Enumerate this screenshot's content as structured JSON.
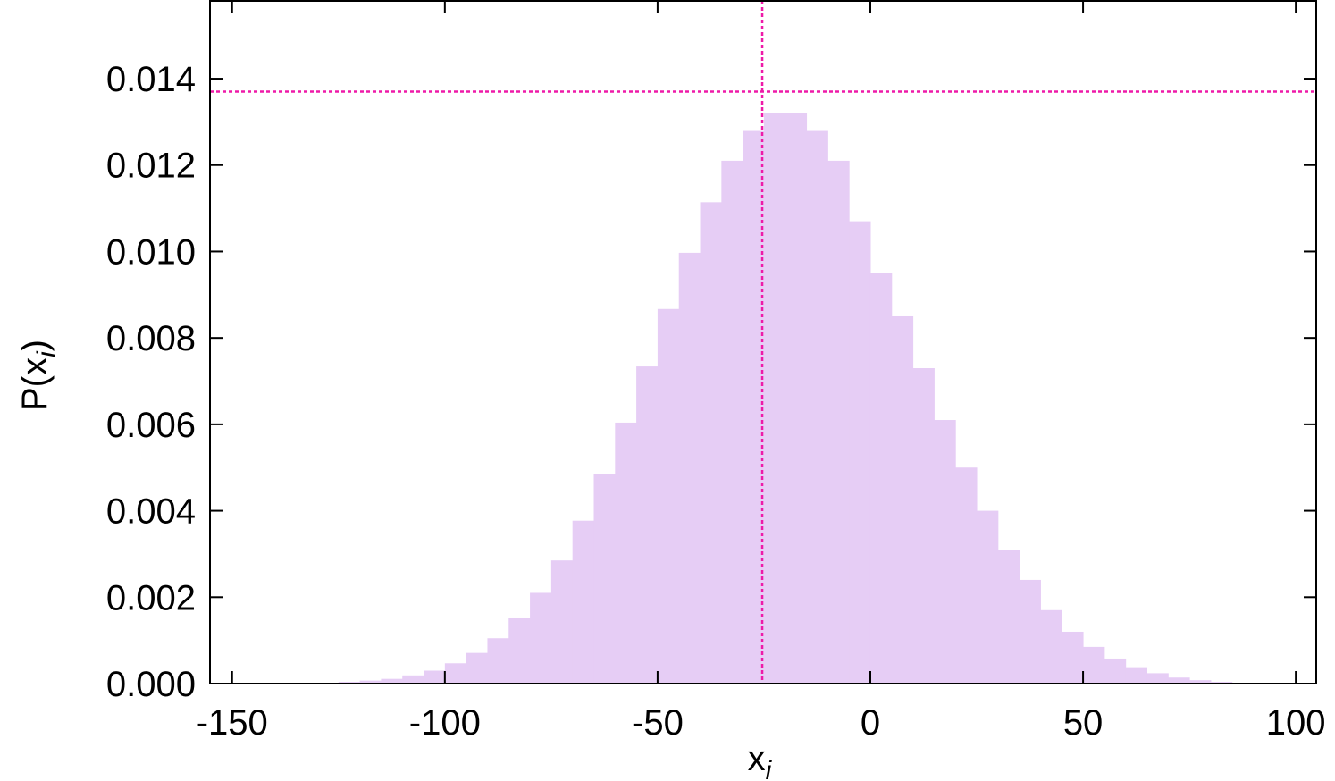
{
  "chart_data": {
    "type": "histogram",
    "xlabel": [
      "x",
      "i"
    ],
    "ylabel": [
      "P(x",
      "i",
      ")"
    ],
    "bins": [
      -125,
      -120,
      -115,
      -110,
      -105,
      -100,
      -95,
      -90,
      -85,
      -80,
      -75,
      -70,
      -65,
      -60,
      -55,
      -50,
      -45,
      -40,
      -35,
      -30,
      -25,
      -20,
      -15,
      -10,
      -5,
      0,
      5,
      10,
      15,
      20,
      25,
      30,
      35,
      40,
      45,
      50,
      55,
      60,
      65,
      70,
      75,
      80,
      85
    ],
    "values": [
      4e-05,
      7e-05,
      0.00011,
      0.00019,
      0.0003,
      0.00047,
      0.00071,
      0.00105,
      0.00151,
      0.0021,
      0.00285,
      0.00377,
      0.00485,
      0.00604,
      0.00734,
      0.00867,
      0.00997,
      0.01114,
      0.0121,
      0.01279,
      0.0132,
      0.0132,
      0.01279,
      0.0121,
      0.0107,
      0.0095,
      0.0085,
      0.0073,
      0.0061,
      0.005,
      0.004,
      0.0031,
      0.0024,
      0.0017,
      0.0012,
      0.00085,
      0.00058,
      0.00038,
      0.00024,
      0.00014,
      8e-05,
      4e-05
    ],
    "color": "#e6cdf5",
    "xlim": [
      -155.2,
      104.8
    ],
    "ylim": [
      0,
      0.0158
    ],
    "xticks": [
      -150,
      -100,
      -50,
      0,
      50,
      100
    ],
    "yticks": [
      {
        "value": 0,
        "label": "0.000"
      },
      {
        "value": 0.002,
        "label": "0.002"
      },
      {
        "value": 0.004,
        "label": "0.004"
      },
      {
        "value": 0.006,
        "label": "0.006"
      },
      {
        "value": 0.008,
        "label": "0.008"
      },
      {
        "value": 0.01,
        "label": "0.010"
      },
      {
        "value": 0.012,
        "label": "0.012"
      },
      {
        "value": 0.014,
        "label": "0.014"
      }
    ],
    "vline": -25.4,
    "hline": 0.0137,
    "reference_color": "#ee1aa8"
  }
}
